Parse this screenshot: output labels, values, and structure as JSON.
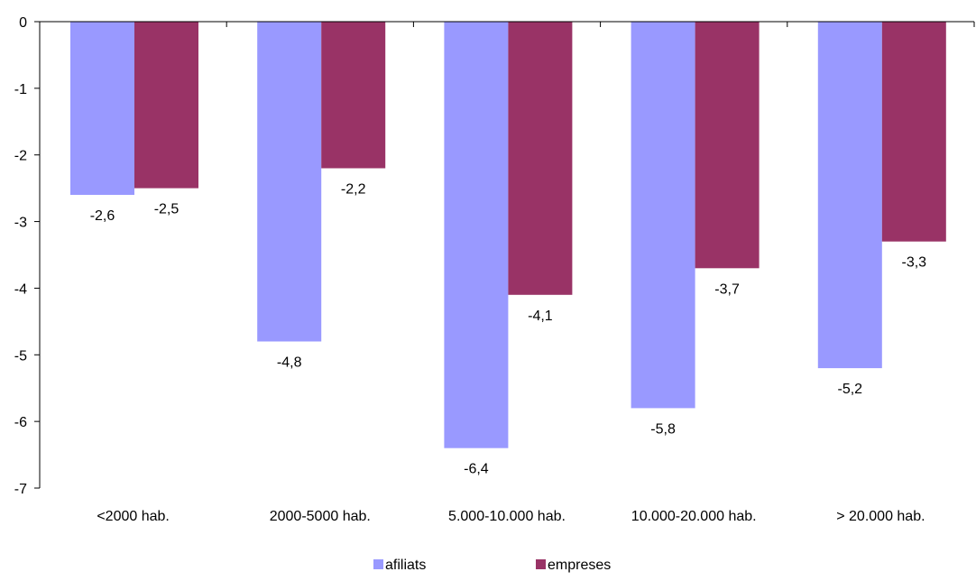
{
  "chart_data": {
    "type": "bar",
    "title": "",
    "xlabel": "",
    "ylabel": "",
    "categories": [
      "<2000 hab.",
      "2000-5000 hab.",
      "5.000-10.000 hab.",
      "10.000-20.000 hab.",
      "> 20.000 hab."
    ],
    "series": [
      {
        "name": "afiliats",
        "color": "#9999ff",
        "values": [
          -2.6,
          -4.8,
          -6.4,
          -5.8,
          -5.2
        ]
      },
      {
        "name": "empreses",
        "color": "#993366",
        "values": [
          -2.5,
          -2.2,
          -4.1,
          -3.7,
          -3.3
        ]
      }
    ],
    "data_labels": [
      [
        "-2,6",
        "-4,8",
        "-6,4",
        "-5,8",
        "-5,2"
      ],
      [
        "-2,5",
        "-2,2",
        "-4,1",
        "-3,7",
        "-3,3"
      ]
    ],
    "ylim": [
      -7,
      0
    ],
    "yticks": [
      0,
      -1,
      -2,
      -3,
      -4,
      -5,
      -6,
      -7
    ],
    "ytick_labels": [
      "0",
      "-1",
      "-2",
      "-3",
      "-4",
      "-5",
      "-6",
      "-7"
    ],
    "grid": false,
    "legend_position": "bottom"
  }
}
